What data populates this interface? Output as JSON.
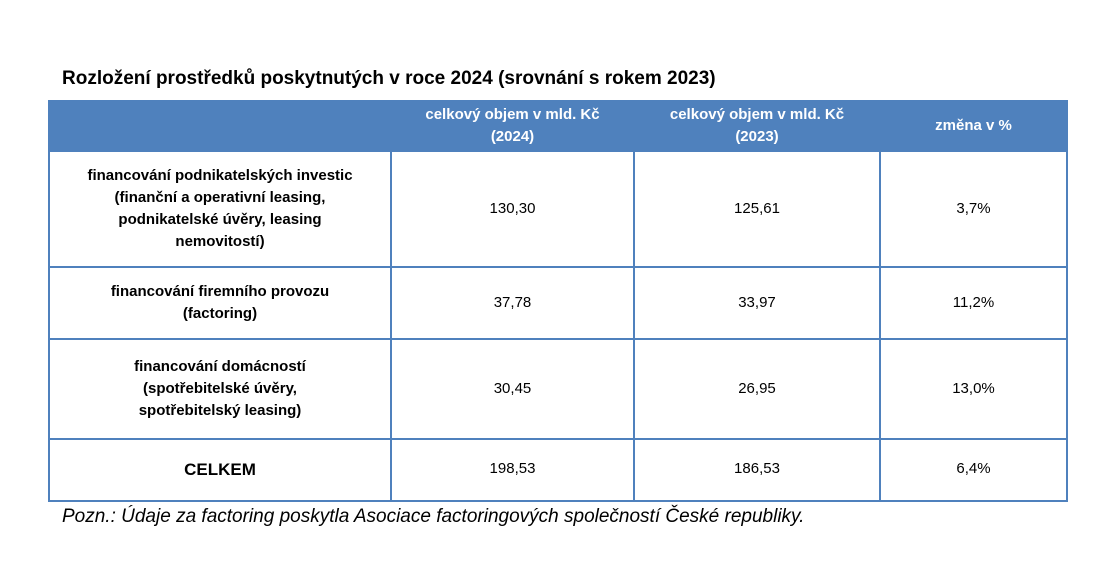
{
  "title": "Rozložení prostředků poskytnutých v roce 2024 (srovnání s rokem 2023)",
  "table": {
    "header": [
      [],
      [
        "celkový objem v mld. Kč",
        "(2024)"
      ],
      [
        "celkový objem v mld. Kč",
        "(2023)"
      ],
      [
        "změna v %"
      ]
    ],
    "rows": [
      [
        [
          "financování podnikatelských investic",
          "(finanční a operativní leasing,",
          "podnikatelské úvěry, leasing",
          "nemovitostí)"
        ],
        "130,30",
        "125,61",
        "3,7%"
      ],
      [
        [
          "financování firemního provozu",
          "(factoring)"
        ],
        "37,78",
        "33,97",
        "11,2%"
      ],
      [
        [
          "financování domácností",
          "(spotřebitelské úvěry,",
          "spotřebitelský leasing)"
        ],
        "30,45",
        "26,95",
        "13,0%"
      ],
      [
        [
          "CELKEM"
        ],
        "198,53",
        "186,53",
        "6,4%"
      ]
    ]
  },
  "note": "Pozn.: Údaje za factoring poskytla Asociace factoringových společností České republiky."
}
